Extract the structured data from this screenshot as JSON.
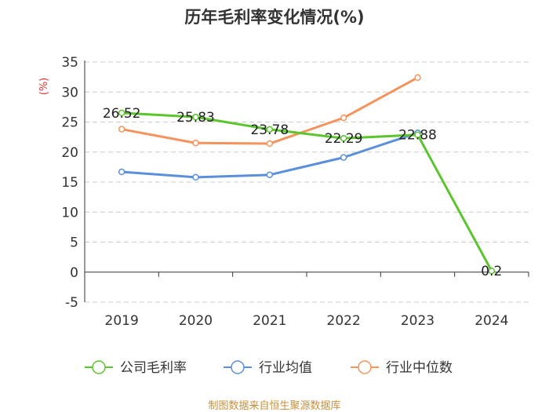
{
  "chart_data": {
    "type": "line",
    "title": "历年毛利率变化情况(%)",
    "ylabel": "(%)",
    "categories": [
      "2019",
      "2020",
      "2021",
      "2022",
      "2023",
      "2024"
    ],
    "ylim": [
      -5,
      35
    ],
    "yticks": [
      "35",
      "30",
      "25",
      "20",
      "15",
      "10",
      "5",
      "0",
      "-5"
    ],
    "grid": true,
    "legend_position": "bottom",
    "series": [
      {
        "name": "公司毛利率",
        "color": "#5ac52c",
        "values": [
          26.52,
          25.83,
          23.78,
          22.29,
          22.88,
          0.2
        ],
        "labels": [
          "26.52",
          "25.83",
          "23.78",
          "22.29",
          "22.88",
          "0.2"
        ]
      },
      {
        "name": "行业均值",
        "color": "#5b8fdc",
        "values": [
          16.7,
          15.8,
          16.2,
          19.1,
          23.2,
          null
        ]
      },
      {
        "name": "行业中位数",
        "color": "#f5935d",
        "values": [
          23.8,
          21.5,
          21.4,
          25.7,
          32.4,
          null
        ]
      }
    ]
  },
  "source": "制图数据来自恒生聚源数据库"
}
